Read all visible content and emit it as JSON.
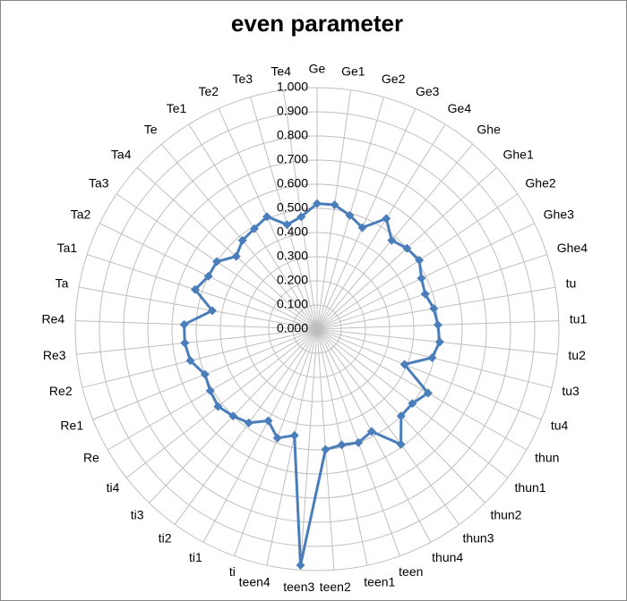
{
  "chart_data": {
    "type": "radar",
    "title": "even parameter",
    "categories": [
      "Ge",
      "Ge1",
      "Ge2",
      "Ge3",
      "Ge4",
      "Ghe",
      "Ghe1",
      "Ghe2",
      "Ghe3",
      "Ghe4",
      "tu",
      "tu1",
      "tu2",
      "tu3",
      "tu4",
      "thun",
      "thun1",
      "thun2",
      "thun3",
      "thun4",
      "teen",
      "teen1",
      "teen2",
      "teen3",
      "teen4",
      "ti",
      "ti1",
      "ti2",
      "ti3",
      "ti4",
      "Re",
      "Re1",
      "Re2",
      "Re3",
      "Re4",
      "Ta",
      "Ta1",
      "Ta2",
      "Ta3",
      "Ta4",
      "Te",
      "Te1",
      "Te2",
      "Te3",
      "Te4"
    ],
    "values": [
      0.52,
      0.52,
      0.49,
      0.46,
      0.54,
      0.48,
      0.5,
      0.51,
      0.48,
      0.47,
      0.49,
      0.5,
      0.51,
      0.49,
      0.39,
      0.53,
      0.5,
      0.5,
      0.59,
      0.48,
      0.5,
      0.49,
      0.5,
      0.98,
      0.45,
      0.48,
      0.43,
      0.48,
      0.5,
      0.52,
      0.51,
      0.5,
      0.54,
      0.55,
      0.55,
      0.44,
      0.53,
      0.5,
      0.5,
      0.45,
      0.48,
      0.49,
      0.51,
      0.45,
      0.47
    ],
    "color": "#4a7ebb",
    "ylim": [
      0,
      1
    ],
    "yticks": [
      {
        "value": 0,
        "label": "0.000"
      },
      {
        "value": 0.1,
        "label": "0.100"
      },
      {
        "value": 0.2,
        "label": "0.200"
      },
      {
        "value": 0.3,
        "label": "0.300"
      },
      {
        "value": 0.4,
        "label": "0.400"
      },
      {
        "value": 0.5,
        "label": "0.500"
      },
      {
        "value": 0.6,
        "label": "0.600"
      },
      {
        "value": 0.7,
        "label": "0.700"
      },
      {
        "value": 0.8,
        "label": "0.800"
      },
      {
        "value": 0.9,
        "label": "0.900"
      },
      {
        "value": 1,
        "label": "1.000"
      }
    ],
    "grid": true
  }
}
